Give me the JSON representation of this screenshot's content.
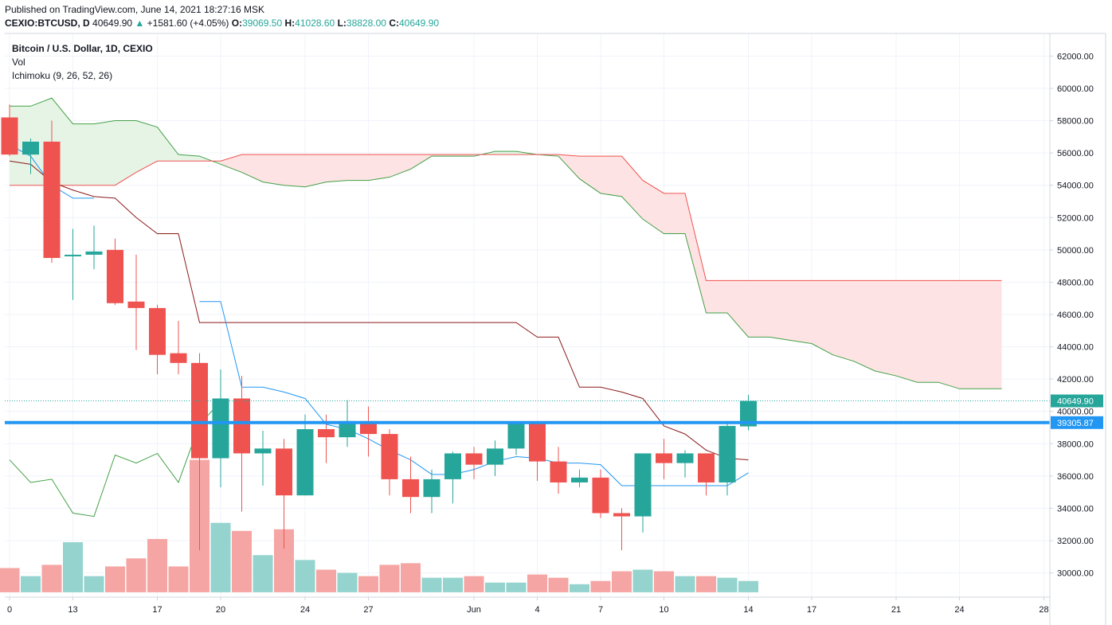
{
  "header": {
    "published": "Published on TradingView.com, June 14, 2021 18:27:16 MSK",
    "symbol": "CEXIO:BTCUSD, D",
    "last": "40649.90",
    "arrow": "▲",
    "change": "+1581.60 (+4.05%)",
    "o_label": "O:",
    "o_value": "39069.50",
    "h_label": "H:",
    "h_value": "41028.60",
    "l_label": "L:",
    "l_value": "38828.00",
    "c_label": "C:",
    "c_value": "40649.90"
  },
  "legend": {
    "title": "Bitcoin / U.S. Dollar, 1D, CEXIO",
    "vol": "Vol",
    "ichimoku": "Ichimoku (9, 26, 52, 26)"
  },
  "chart_data": {
    "type": "candlestick",
    "colors": {
      "up": "#26a69a",
      "down": "#ef5350",
      "vol_up": "#94d3ce",
      "vol_down": "#f5a5a3",
      "conversion": "#2196f3",
      "base": "#8b1a1a",
      "lead_a": "#43a047",
      "lead_b": "#ef5350",
      "lagging": "#43a047",
      "cloud_green": "#e6f4e6",
      "cloud_red": "#fde3e3",
      "hline": "#2196f3",
      "axis_bg": "#ffffff"
    },
    "y_axis": {
      "ylim": [
        28500,
        63400
      ],
      "ticks": [
        62000,
        60000,
        58000,
        56000,
        54000,
        52000,
        50000,
        48000,
        46000,
        44000,
        42000,
        40000,
        38000,
        36000,
        34000,
        32000,
        30000
      ],
      "tick_labels": [
        "62000.00",
        "60000.00",
        "58000.00",
        "56000.00",
        "54000.00",
        "52000.00",
        "50000.00",
        "48000.00",
        "46000.00",
        "44000.00",
        "42000.00",
        "40000.00",
        "38000.00",
        "36000.00",
        "34000.00",
        "32000.00",
        "30000.00"
      ]
    },
    "x_axis": {
      "start_date": "2021-05-10",
      "ticks": [
        {
          "date": "2021-05-10",
          "label": "0"
        },
        {
          "date": "2021-05-13",
          "label": "13"
        },
        {
          "date": "2021-05-17",
          "label": "17"
        },
        {
          "date": "2021-05-20",
          "label": "20"
        },
        {
          "date": "2021-05-24",
          "label": "24"
        },
        {
          "date": "2021-05-27",
          "label": "27"
        },
        {
          "date": "2021-06-01",
          "label": "Jun"
        },
        {
          "date": "2021-06-04",
          "label": "4"
        },
        {
          "date": "2021-06-07",
          "label": "7"
        },
        {
          "date": "2021-06-10",
          "label": "10"
        },
        {
          "date": "2021-06-14",
          "label": "14"
        },
        {
          "date": "2021-06-17",
          "label": "17"
        },
        {
          "date": "2021-06-21",
          "label": "21"
        },
        {
          "date": "2021-06-24",
          "label": "24"
        },
        {
          "date": "2021-06-28",
          "label": "28"
        }
      ]
    },
    "candles": [
      {
        "date": "2021-05-10",
        "o": 58200,
        "h": 59000,
        "l": 55800,
        "c": 55900
      },
      {
        "date": "2021-05-11",
        "o": 55900,
        "h": 56900,
        "l": 54700,
        "c": 56700
      },
      {
        "date": "2021-05-12",
        "o": 56700,
        "h": 58000,
        "l": 49200,
        "c": 49500
      },
      {
        "date": "2021-05-13",
        "o": 49600,
        "h": 51300,
        "l": 46900,
        "c": 49700
      },
      {
        "date": "2021-05-14",
        "o": 49700,
        "h": 51500,
        "l": 48800,
        "c": 49900
      },
      {
        "date": "2021-05-15",
        "o": 50000,
        "h": 50700,
        "l": 46600,
        "c": 46700
      },
      {
        "date": "2021-05-16",
        "o": 46800,
        "h": 49700,
        "l": 43800,
        "c": 46400
      },
      {
        "date": "2021-05-17",
        "o": 46400,
        "h": 46600,
        "l": 42300,
        "c": 43500
      },
      {
        "date": "2021-05-18",
        "o": 43600,
        "h": 45600,
        "l": 42300,
        "c": 43000
      },
      {
        "date": "2021-05-19",
        "o": 43000,
        "h": 43600,
        "l": 31400,
        "c": 37100
      },
      {
        "date": "2021-05-20",
        "o": 37100,
        "h": 42600,
        "l": 35300,
        "c": 40800
      },
      {
        "date": "2021-05-21",
        "o": 40800,
        "h": 42200,
        "l": 33800,
        "c": 37400
      },
      {
        "date": "2021-05-22",
        "o": 37400,
        "h": 38800,
        "l": 35400,
        "c": 37700
      },
      {
        "date": "2021-05-23",
        "o": 37700,
        "h": 38300,
        "l": 31500,
        "c": 34800
      },
      {
        "date": "2021-05-24",
        "o": 34800,
        "h": 39800,
        "l": 34800,
        "c": 38900
      },
      {
        "date": "2021-05-25",
        "o": 38900,
        "h": 39800,
        "l": 36800,
        "c": 38400
      },
      {
        "date": "2021-05-26",
        "o": 38400,
        "h": 40700,
        "l": 37800,
        "c": 39400
      },
      {
        "date": "2021-05-27",
        "o": 39400,
        "h": 40300,
        "l": 37200,
        "c": 38600
      },
      {
        "date": "2021-05-28",
        "o": 38600,
        "h": 38900,
        "l": 34800,
        "c": 35800
      },
      {
        "date": "2021-05-29",
        "o": 35800,
        "h": 37200,
        "l": 33700,
        "c": 34700
      },
      {
        "date": "2021-05-30",
        "o": 34700,
        "h": 36400,
        "l": 33700,
        "c": 35800
      },
      {
        "date": "2021-05-31",
        "o": 35800,
        "h": 37500,
        "l": 34300,
        "c": 37400
      },
      {
        "date": "2021-06-01",
        "o": 37400,
        "h": 37800,
        "l": 35800,
        "c": 36700
      },
      {
        "date": "2021-06-02",
        "o": 36700,
        "h": 38200,
        "l": 36000,
        "c": 37700
      },
      {
        "date": "2021-06-03",
        "o": 37700,
        "h": 39400,
        "l": 37300,
        "c": 39300
      },
      {
        "date": "2021-06-04",
        "o": 39300,
        "h": 39400,
        "l": 35700,
        "c": 36900
      },
      {
        "date": "2021-06-05",
        "o": 36900,
        "h": 37800,
        "l": 34900,
        "c": 35600
      },
      {
        "date": "2021-06-06",
        "o": 35600,
        "h": 36400,
        "l": 35300,
        "c": 35900
      },
      {
        "date": "2021-06-07",
        "o": 35900,
        "h": 36400,
        "l": 33400,
        "c": 33700
      },
      {
        "date": "2021-06-08",
        "o": 33700,
        "h": 34000,
        "l": 31400,
        "c": 33500
      },
      {
        "date": "2021-06-09",
        "o": 33500,
        "h": 37400,
        "l": 32500,
        "c": 37400
      },
      {
        "date": "2021-06-10",
        "o": 37400,
        "h": 38300,
        "l": 35800,
        "c": 36800
      },
      {
        "date": "2021-06-11",
        "o": 36800,
        "h": 37600,
        "l": 35900,
        "c": 37400
      },
      {
        "date": "2021-06-12",
        "o": 37400,
        "h": 37400,
        "l": 34800,
        "c": 35600
      },
      {
        "date": "2021-06-13",
        "o": 35600,
        "h": 39400,
        "l": 34800,
        "c": 39100
      },
      {
        "date": "2021-06-14",
        "o": 39069.5,
        "h": 41028.6,
        "l": 38828,
        "c": 40649.9
      }
    ],
    "volume": {
      "baseline": 28800,
      "values": [
        30300,
        29800,
        30500,
        31900,
        29800,
        30400,
        30900,
        32100,
        30400,
        37000,
        33100,
        32600,
        31100,
        32700,
        30800,
        30200,
        30000,
        29800,
        30500,
        30600,
        29700,
        29700,
        29800,
        29400,
        29400,
        29900,
        29700,
        29300,
        29500,
        30100,
        30200,
        30100,
        29800,
        29800,
        29700,
        29500
      ]
    },
    "indicators": {
      "conversion_line": {
        "start": "2021-05-10",
        "values": [
          56500,
          55800,
          54000,
          53200,
          53200,
          null,
          null,
          null,
          null,
          46800,
          46800,
          41500,
          41500,
          41200,
          40800,
          39200,
          38900,
          38300,
          37600,
          37000,
          36100,
          36100,
          36400,
          36900,
          37200,
          37100,
          36800,
          36800,
          36700,
          35400,
          35400,
          35400,
          35400,
          35400,
          35400,
          36200
        ]
      },
      "base_line": {
        "start": "2021-05-10",
        "values": [
          55500,
          55300,
          54200,
          53700,
          53300,
          53200,
          52000,
          51000,
          51000,
          45500,
          45500,
          45500,
          45500,
          45500,
          45500,
          45500,
          45500,
          45500,
          45500,
          45500,
          45500,
          45500,
          45500,
          45500,
          45500,
          44600,
          44600,
          41500,
          41500,
          41200,
          40800,
          39100,
          38600,
          37600,
          37100,
          37000
        ]
      },
      "lagging_span": {
        "start": "2021-05-10",
        "values": [
          37000,
          35600,
          35800,
          33700,
          33500,
          37300,
          36800,
          37400,
          35600,
          39200,
          40600
        ]
      },
      "leading_span_a": {
        "start": "2021-05-10",
        "values": [
          58900,
          58900,
          59400,
          57800,
          57800,
          58000,
          58000,
          57600,
          55900,
          55800,
          55300,
          54800,
          54200,
          54000,
          53900,
          54200,
          54300,
          54300,
          54500,
          55000,
          55800,
          55800,
          55800,
          56100,
          56100,
          55900,
          55800,
          54400,
          53500,
          53300,
          51900,
          51000,
          51000,
          46100,
          46100,
          44600,
          44600,
          44400,
          44200,
          43500,
          43100,
          42500,
          42200,
          41800,
          41800,
          41400,
          41400,
          41400
        ]
      },
      "leading_span_b": {
        "start": "2021-05-10",
        "values": [
          54000,
          54000,
          54000,
          54000,
          54000,
          54000,
          54800,
          55500,
          55500,
          55500,
          55500,
          55900,
          55900,
          55900,
          55900,
          55900,
          55900,
          55900,
          55900,
          55900,
          55900,
          55900,
          55900,
          55900,
          55900,
          55900,
          55900,
          55800,
          55800,
          55800,
          54300,
          53500,
          53500,
          48100,
          48100,
          48100,
          48100,
          48100,
          48100,
          48100,
          48100,
          48100,
          48100,
          48100,
          48100,
          48100,
          48100,
          48100
        ]
      }
    },
    "price_lines": [
      {
        "value": 40649.9,
        "label": "40649.90",
        "color": "#26a69a",
        "style": "dotted"
      },
      {
        "value": 39305.87,
        "label": "39305.87",
        "color": "#2196f3",
        "style": "solid"
      }
    ]
  }
}
